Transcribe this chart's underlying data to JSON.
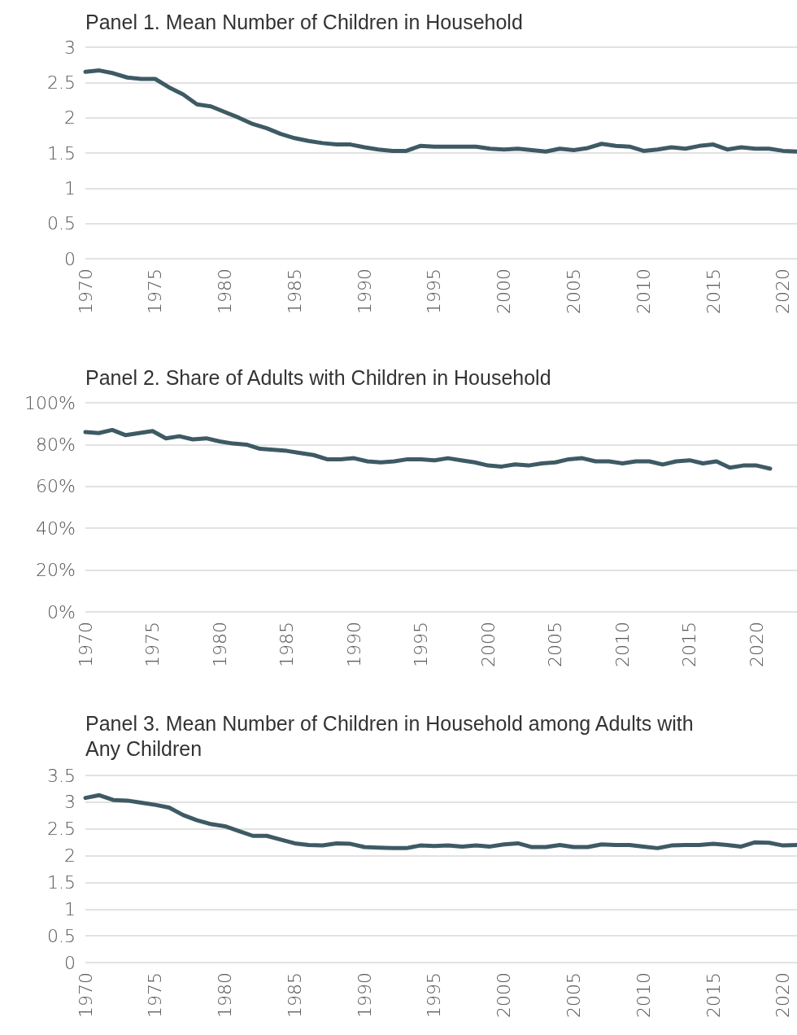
{
  "chart_data": [
    {
      "type": "line",
      "title": "Panel 1. Mean Number of Children in Household",
      "x": [
        1970,
        1971,
        1972,
        1973,
        1974,
        1975,
        1976,
        1977,
        1978,
        1979,
        1980,
        1981,
        1982,
        1983,
        1984,
        1985,
        1986,
        1987,
        1988,
        1989,
        1990,
        1991,
        1992,
        1993,
        1994,
        1995,
        1996,
        1997,
        1998,
        1999,
        2000,
        2001,
        2002,
        2003,
        2004,
        2005,
        2006,
        2007,
        2008,
        2009,
        2010,
        2011,
        2012,
        2013,
        2014,
        2015,
        2016,
        2017,
        2018,
        2019,
        2020,
        2021
      ],
      "series": [
        {
          "color": "#3e5a64",
          "values": [
            2.65,
            2.67,
            2.63,
            2.57,
            2.55,
            2.55,
            2.43,
            2.33,
            2.19,
            2.16,
            2.08,
            2.0,
            1.91,
            1.85,
            1.77,
            1.71,
            1.67,
            1.64,
            1.62,
            1.62,
            1.58,
            1.55,
            1.53,
            1.53,
            1.6,
            1.59,
            1.59,
            1.59,
            1.59,
            1.56,
            1.55,
            1.56,
            1.54,
            1.52,
            1.56,
            1.54,
            1.57,
            1.63,
            1.6,
            1.59,
            1.53,
            1.55,
            1.58,
            1.56,
            1.6,
            1.62,
            1.55,
            1.58,
            1.56,
            1.56,
            1.53,
            1.52
          ]
        }
      ],
      "xlim": [
        1970,
        2021
      ],
      "xticks": [
        1970,
        1975,
        1980,
        1985,
        1990,
        1995,
        2000,
        2005,
        2010,
        2015,
        2020
      ],
      "ylim": [
        0,
        3
      ],
      "yticks": [
        0,
        0.5,
        1,
        1.5,
        2,
        2.5,
        3
      ],
      "grid": "y",
      "marker": "none",
      "line_style": "solid"
    },
    {
      "type": "line",
      "title": "Panel 2. Share of Adults with Children in Household",
      "x": [
        1970,
        1971,
        1972,
        1973,
        1974,
        1975,
        1976,
        1977,
        1978,
        1979,
        1980,
        1981,
        1982,
        1983,
        1984,
        1985,
        1986,
        1987,
        1988,
        1989,
        1990,
        1991,
        1992,
        1993,
        1994,
        1995,
        1996,
        1997,
        1998,
        1999,
        2000,
        2001,
        2002,
        2003,
        2004,
        2005,
        2006,
        2007,
        2008,
        2009,
        2010,
        2011,
        2012,
        2013,
        2014,
        2015,
        2016,
        2017,
        2018,
        2019,
        2020,
        2021
      ],
      "series": [
        {
          "color": "#3e5a64",
          "values": [
            86,
            85.5,
            87,
            84.5,
            85.5,
            86.5,
            83,
            84,
            82.5,
            83,
            81.5,
            80.5,
            80,
            78,
            77.5,
            77,
            76,
            75,
            73,
            73,
            73.5,
            72,
            71.5,
            72,
            73,
            73,
            72.5,
            73.5,
            72.5,
            71.5,
            70,
            69.5,
            70.5,
            70,
            71,
            71.5,
            73,
            73.5,
            72,
            72,
            71,
            72,
            72,
            70.5,
            72,
            72.5,
            71,
            72,
            69,
            70,
            70,
            68.5
          ]
        }
      ],
      "xlim": [
        1970,
        2023
      ],
      "xticks": [
        1970,
        1975,
        1980,
        1985,
        1990,
        1995,
        2000,
        2005,
        2010,
        2015,
        2020
      ],
      "ylim": [
        0,
        100
      ],
      "yticks": [
        {
          "value": 0,
          "label": "0%"
        },
        {
          "value": 20,
          "label": "20%"
        },
        {
          "value": 40,
          "label": "40%"
        },
        {
          "value": 60,
          "label": "60%"
        },
        {
          "value": 80,
          "label": "80%"
        },
        {
          "value": 100,
          "label": "100%"
        }
      ],
      "grid": "y",
      "marker": "none",
      "line_style": "solid"
    },
    {
      "type": "line",
      "title": "Panel 3. Mean Number of Children in Household among Adults with Any Children",
      "x": [
        1970,
        1971,
        1972,
        1973,
        1974,
        1975,
        1976,
        1977,
        1978,
        1979,
        1980,
        1981,
        1982,
        1983,
        1984,
        1985,
        1986,
        1987,
        1988,
        1989,
        1990,
        1991,
        1992,
        1993,
        1994,
        1995,
        1996,
        1997,
        1998,
        1999,
        2000,
        2001,
        2002,
        2003,
        2004,
        2005,
        2006,
        2007,
        2008,
        2009,
        2010,
        2011,
        2012,
        2013,
        2014,
        2015,
        2016,
        2017,
        2018,
        2019,
        2020,
        2021
      ],
      "series": [
        {
          "color": "#3e5a64",
          "values": [
            3.08,
            3.13,
            3.04,
            3.03,
            2.99,
            2.95,
            2.9,
            2.76,
            2.66,
            2.59,
            2.55,
            2.46,
            2.37,
            2.37,
            2.3,
            2.23,
            2.2,
            2.19,
            2.23,
            2.22,
            2.16,
            2.15,
            2.14,
            2.14,
            2.19,
            2.18,
            2.19,
            2.17,
            2.19,
            2.17,
            2.21,
            2.23,
            2.16,
            2.16,
            2.2,
            2.16,
            2.16,
            2.21,
            2.2,
            2.2,
            2.17,
            2.14,
            2.19,
            2.2,
            2.2,
            2.22,
            2.2,
            2.17,
            2.25,
            2.24,
            2.19,
            2.2
          ]
        }
      ],
      "xlim": [
        1970,
        2021
      ],
      "xticks": [
        1970,
        1975,
        1980,
        1985,
        1990,
        1995,
        2000,
        2005,
        2010,
        2015,
        2020
      ],
      "ylim": [
        0,
        3.5
      ],
      "yticks": [
        0,
        0.5,
        1,
        1.5,
        2,
        2.5,
        3,
        3.5
      ],
      "grid": "y",
      "marker": "none",
      "line_style": "solid"
    }
  ]
}
